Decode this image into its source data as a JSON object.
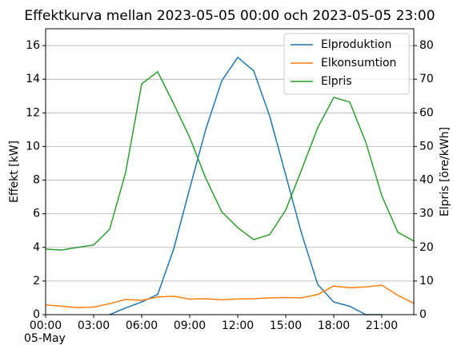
{
  "chart_data": {
    "type": "line",
    "title": "Effektkurva mellan 2023-05-05 00:00 och 2023-05-05 23:00",
    "y_label": "Effekt [kW]",
    "y2_label": "Elpris [öre/kWh]",
    "x_sublabel": "05-May",
    "x": [
      0,
      1,
      2,
      3,
      4,
      5,
      6,
      7,
      8,
      9,
      10,
      11,
      12,
      13,
      14,
      15,
      16,
      17,
      18,
      19,
      20,
      21,
      22,
      23
    ],
    "xlim": [
      0,
      23
    ],
    "xticks": [
      {
        "value": 0,
        "label": "00:00"
      },
      {
        "value": 3,
        "label": "03:00"
      },
      {
        "value": 6,
        "label": "06:00"
      },
      {
        "value": 9,
        "label": "09:00"
      },
      {
        "value": 12,
        "label": "12:00"
      },
      {
        "value": 15,
        "label": "15:00"
      },
      {
        "value": 18,
        "label": "18:00"
      },
      {
        "value": 21,
        "label": "21:00"
      }
    ],
    "ylim": [
      0,
      17
    ],
    "yticks": [
      0,
      2,
      4,
      6,
      8,
      10,
      12,
      14,
      16
    ],
    "y2lim": [
      0,
      85
    ],
    "y2ticks": [
      0,
      10,
      20,
      30,
      40,
      50,
      60,
      70,
      80
    ],
    "grid": true,
    "legend": "upper right",
    "series": [
      {
        "name": "Elproduktion",
        "color": "#1f77b4",
        "values": [
          null,
          null,
          null,
          null,
          0,
          0.4,
          0.75,
          1.2,
          3.9,
          7.5,
          11.0,
          13.9,
          15.3,
          14.5,
          11.8,
          8.3,
          4.8,
          1.8,
          0.75,
          0.5,
          0,
          0,
          null,
          null
        ]
      },
      {
        "name": "Elkonsumtion",
        "color": "#ff7f0e",
        "values": [
          0.58,
          0.5,
          0.42,
          0.45,
          0.65,
          0.9,
          0.85,
          1.05,
          1.1,
          0.92,
          0.95,
          0.88,
          0.93,
          0.95,
          1.0,
          1.02,
          1.0,
          1.2,
          1.7,
          1.6,
          1.65,
          1.75,
          1.15,
          0.68
        ]
      },
      {
        "name": "Elpris",
        "color": "#2ca02c",
        "axis": "y2",
        "values": [
          19.5,
          19.2,
          20,
          20.7,
          25.4,
          42.3,
          68.6,
          72.2,
          62.7,
          52.7,
          40.6,
          30.6,
          25.9,
          22.3,
          23.8,
          31.1,
          43.2,
          55.6,
          64.6,
          63.2,
          51.3,
          35.4,
          24.5,
          21.9
        ]
      }
    ]
  }
}
